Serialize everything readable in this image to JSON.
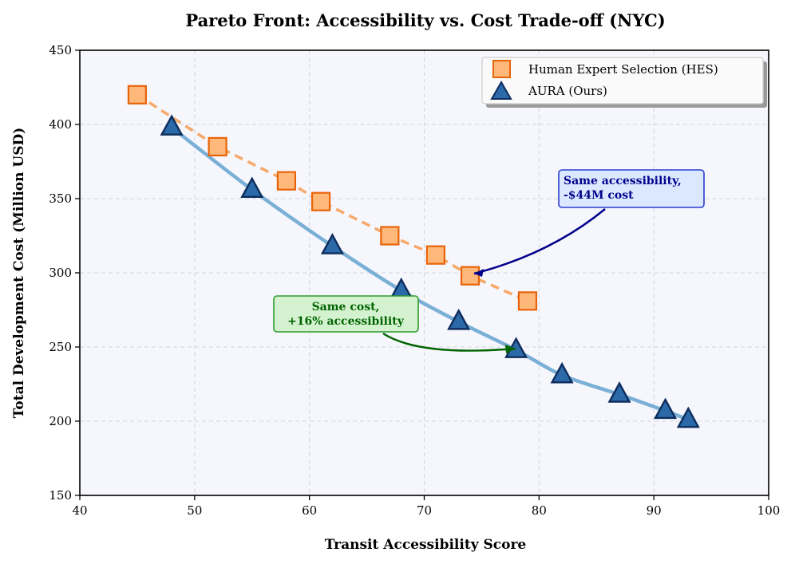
{
  "chart_data": {
    "type": "line",
    "title": "Pareto Front: Accessibility vs. Cost Trade-off (NYC)",
    "xlabel": "Transit Accessibility Score",
    "ylabel": "Total Development Cost (Million USD)",
    "xlim": [
      40,
      100
    ],
    "ylim": [
      150,
      450
    ],
    "xticks": [
      40,
      50,
      60,
      70,
      80,
      90,
      100
    ],
    "yticks": [
      150,
      200,
      250,
      300,
      350,
      400,
      450
    ],
    "grid": true,
    "legend_position": "top-right",
    "series": [
      {
        "name": "Human Expert Selection (HES)",
        "marker": "square",
        "line_style": "dashed",
        "color": "#e8640a",
        "fill": "#fdb87a",
        "line_color": "#f6a96a",
        "points": [
          {
            "x": 45,
            "y": 420
          },
          {
            "x": 52,
            "y": 385
          },
          {
            "x": 58,
            "y": 362
          },
          {
            "x": 61,
            "y": 348
          },
          {
            "x": 67,
            "y": 325
          },
          {
            "x": 71,
            "y": 312
          },
          {
            "x": 74,
            "y": 298
          },
          {
            "x": 79,
            "y": 281
          }
        ]
      },
      {
        "name": "AURA (Ours)",
        "marker": "triangle",
        "line_style": "solid",
        "color": "#0d2d5c",
        "fill": "#2b69a8",
        "line_color": "#7aafd6",
        "points": [
          {
            "x": 48,
            "y": 398
          },
          {
            "x": 55,
            "y": 356
          },
          {
            "x": 62,
            "y": 318
          },
          {
            "x": 68,
            "y": 288
          },
          {
            "x": 73,
            "y": 267
          },
          {
            "x": 78,
            "y": 248
          },
          {
            "x": 82,
            "y": 231
          },
          {
            "x": 87,
            "y": 218
          },
          {
            "x": 91,
            "y": 207
          },
          {
            "x": 93,
            "y": 201
          }
        ]
      }
    ],
    "annotations": [
      {
        "id": "accessibility",
        "lines": [
          "Same accessibility,",
          "-$44M cost"
        ],
        "text_color": "#00008b",
        "box_fill": "#dbe8ff",
        "box_stroke": "#2a3ccf",
        "arrow_color": "#00008b",
        "target": {
          "x": 74,
          "y": 298
        }
      },
      {
        "id": "cost",
        "lines": [
          "Same cost,",
          "+16% accessibility"
        ],
        "text_color": "#006400",
        "box_fill": "#d4f2cf",
        "box_stroke": "#2e9a2e",
        "arrow_color": "#006400",
        "target": {
          "x": 78,
          "y": 248
        }
      }
    ]
  }
}
